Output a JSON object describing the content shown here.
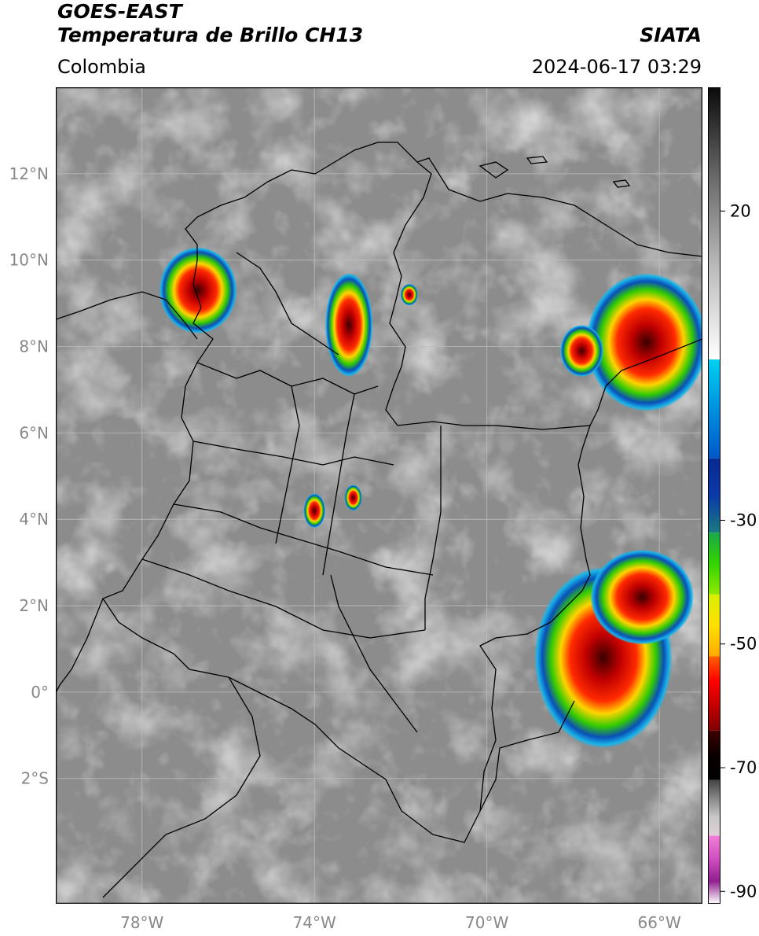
{
  "header": {
    "satellite": "GOES-EAST",
    "product": "Temperatura de Brillo CH13",
    "region": "Colombia",
    "agency": "SIATA",
    "datetime": "2024-06-17 03:29"
  },
  "map": {
    "lon_range": [
      -80.0,
      -65.0
    ],
    "lat_range": [
      -4.9,
      14.0
    ],
    "lat_labels": [
      "12°N",
      "10°N",
      "8°N",
      "6°N",
      "4°N",
      "2°N",
      "0°",
      "2°S"
    ],
    "lat_values": [
      12,
      10,
      8,
      6,
      4,
      2,
      0,
      -2
    ],
    "lon_labels": [
      "78°W",
      "74°W",
      "70°W",
      "66°W"
    ],
    "lon_values": [
      -78,
      -74,
      -70,
      -66
    ],
    "grid": true,
    "background_color": "#8c8c8c",
    "border_color": "#000000",
    "storm_cells": [
      {
        "lon": -76.7,
        "lat": 9.3,
        "rx": 0.9,
        "ry": 1.0
      },
      {
        "lon": -73.2,
        "lat": 8.5,
        "rx": 0.55,
        "ry": 1.2
      },
      {
        "lon": -71.8,
        "lat": 9.2,
        "rx": 0.2,
        "ry": 0.25
      },
      {
        "lon": -66.3,
        "lat": 8.1,
        "rx": 1.4,
        "ry": 1.6
      },
      {
        "lon": -67.8,
        "lat": 7.9,
        "rx": 0.5,
        "ry": 0.6
      },
      {
        "lon": -67.3,
        "lat": 0.8,
        "rx": 1.6,
        "ry": 2.1
      },
      {
        "lon": -66.4,
        "lat": 2.2,
        "rx": 1.2,
        "ry": 1.1
      },
      {
        "lon": -74.0,
        "lat": 4.2,
        "rx": 0.25,
        "ry": 0.4
      },
      {
        "lon": -73.1,
        "lat": 4.5,
        "rx": 0.2,
        "ry": 0.3
      }
    ]
  },
  "colorbar": {
    "ticks": [
      "20",
      "-30",
      "-50",
      "-70",
      "-90"
    ],
    "tick_values": [
      20,
      -30,
      -50,
      -70,
      -90
    ],
    "range": [
      -92,
      40
    ],
    "segments": [
      {
        "from": 40,
        "to": -4,
        "kind": "gray"
      },
      {
        "from": -4,
        "to": -20,
        "kind": "blue"
      },
      {
        "from": -20,
        "to": -32,
        "kind": "darkblue"
      },
      {
        "from": -32,
        "to": -42,
        "kind": "green"
      },
      {
        "from": -42,
        "to": -52,
        "kind": "yellow"
      },
      {
        "from": -52,
        "to": -64,
        "kind": "red"
      },
      {
        "from": -64,
        "to": -72,
        "kind": "black"
      },
      {
        "from": -72,
        "to": -81,
        "kind": "lightgray"
      },
      {
        "from": -81,
        "to": -92,
        "kind": "magenta"
      }
    ]
  }
}
